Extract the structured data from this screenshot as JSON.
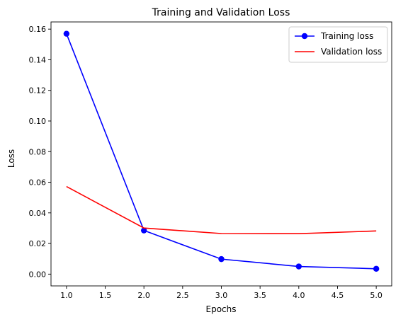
{
  "chart_data": {
    "type": "line",
    "title": "Training and Validation Loss",
    "xlabel": "Epochs",
    "ylabel": "Loss",
    "xlim": [
      0.8,
      5.2
    ],
    "ylim": [
      -0.0077,
      0.1647
    ],
    "x_ticks": [
      "1.0",
      "1.5",
      "2.0",
      "2.5",
      "3.0",
      "3.5",
      "4.0",
      "4.5",
      "5.0"
    ],
    "y_ticks": [
      "0.00",
      "0.02",
      "0.04",
      "0.06",
      "0.08",
      "0.10",
      "0.12",
      "0.14",
      "0.16"
    ],
    "grid": false,
    "legend_position": "top-right",
    "x": [
      1,
      2,
      3,
      4,
      5
    ],
    "series": [
      {
        "name": "Training loss",
        "values": [
          0.157,
          0.0285,
          0.0098,
          0.005,
          0.0035
        ],
        "color": "#0000ff",
        "marker": "circle"
      },
      {
        "name": "Validation loss",
        "values": [
          0.0572,
          0.0301,
          0.0265,
          0.0264,
          0.0282
        ],
        "color": "#ff0000",
        "marker": "none"
      }
    ]
  }
}
